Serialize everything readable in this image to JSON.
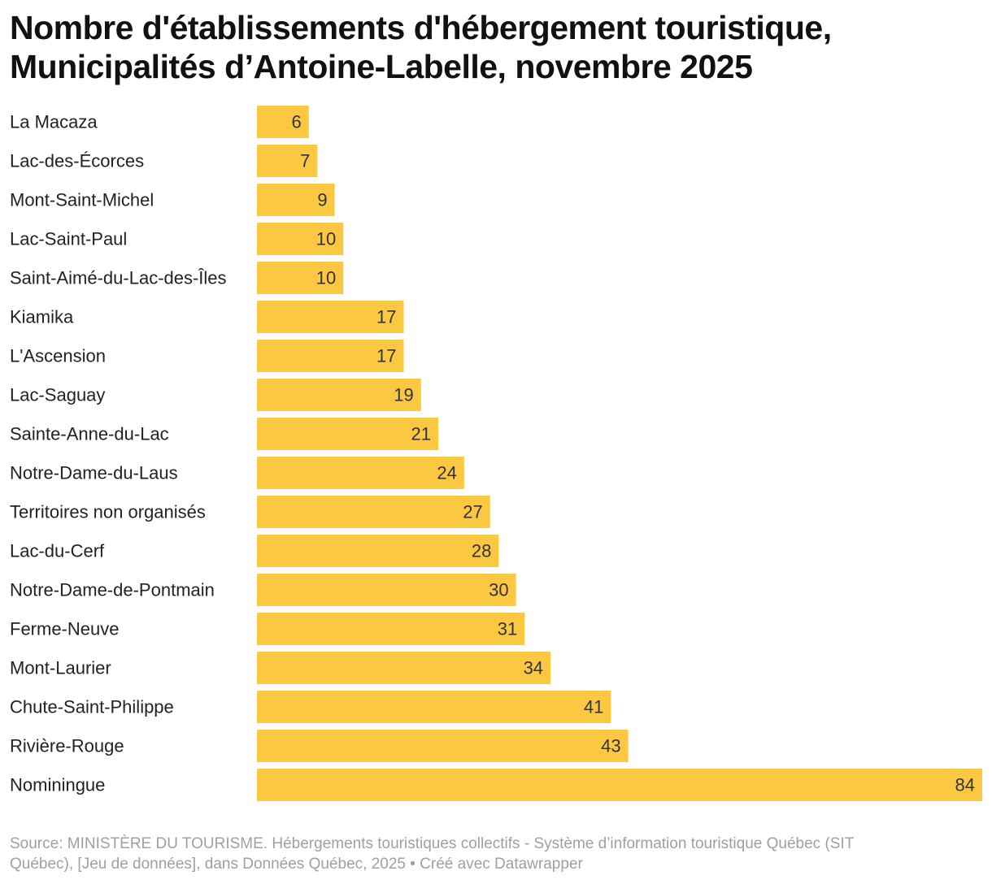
{
  "chart_data": {
    "type": "bar",
    "orientation": "horizontal",
    "title": [
      "Nombre d'établissements d'hébergement touristique,",
      "Municipalités d’Antoine-Labelle, novembre 2025"
    ],
    "categories": [
      "La Macaza",
      "Lac-des-Écorces",
      "Mont-Saint-Michel",
      "Lac-Saint-Paul",
      "Saint-Aimé-du-Lac-des-Îles",
      "Kiamika",
      "L'Ascension",
      "Lac-Saguay",
      "Sainte-Anne-du-Lac",
      "Notre-Dame-du-Laus",
      "Territoires non organisés",
      "Lac-du-Cerf",
      "Notre-Dame-de-Pontmain",
      "Ferme-Neuve",
      "Mont-Laurier",
      "Chute-Saint-Philippe",
      "Rivière-Rouge",
      "Nominingue"
    ],
    "values": [
      6,
      7,
      9,
      10,
      10,
      17,
      17,
      19,
      21,
      24,
      27,
      28,
      30,
      31,
      34,
      41,
      43,
      84
    ],
    "xlim": [
      0,
      84
    ],
    "bar_color": "#fcc841",
    "grid": false,
    "source": [
      "Source: MINISTÈRE DU TOURISME. Hébergements touristiques collectifs - Système d’information touristique Québec (SIT",
      "Québec), [Jeu de données], dans Données Québec, 2025 • Créé avec Datawrapper"
    ]
  }
}
